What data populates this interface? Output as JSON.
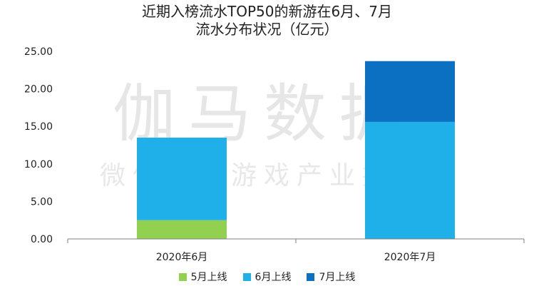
{
  "chart_data": {
    "type": "bar",
    "stacked": true,
    "title_lines": [
      "近期入榜流水TOP50的新游在6月、7月",
      "流水分布状况（亿元）"
    ],
    "categories": [
      "2020年6月",
      "2020年7月"
    ],
    "series": [
      {
        "name": "5月上线",
        "color": "#92d050",
        "values": [
          2.5,
          0
        ]
      },
      {
        "name": "6月上线",
        "color": "#1fb0ea",
        "values": [
          11.0,
          15.6
        ]
      },
      {
        "name": "7月上线",
        "color": "#0b6fc2",
        "values": [
          0,
          8.1
        ]
      }
    ],
    "ylim": [
      0,
      25
    ],
    "yticks": [
      "0.00",
      "5.00",
      "10.00",
      "15.00",
      "20.00",
      "25.00"
    ],
    "grid": false,
    "legend_position": "bottom",
    "xlabel": "",
    "ylabel": ""
  },
  "watermark": {
    "main": "伽马数据",
    "sub": "微信号：游戏产业报告"
  }
}
